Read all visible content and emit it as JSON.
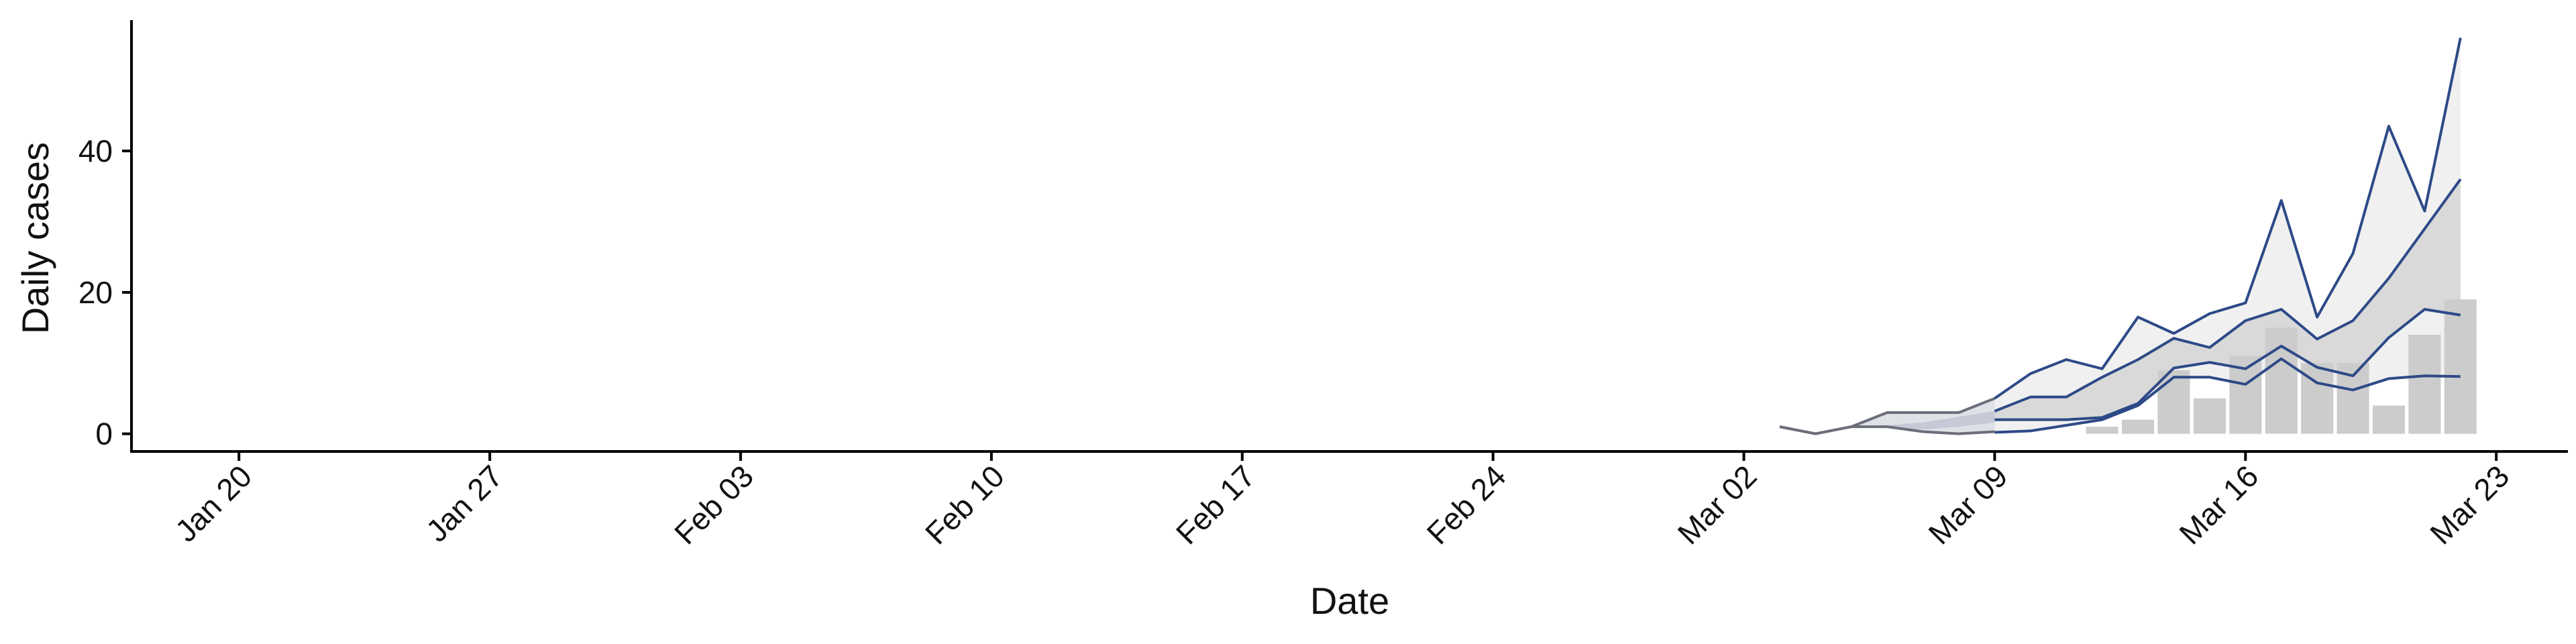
{
  "chart_data": {
    "type": "line",
    "title": "",
    "xlabel": "Date",
    "ylabel": "Daily cases",
    "x_range": [
      "2020-01-17",
      "2020-03-25"
    ],
    "ylim": [
      -2.5,
      58.5
    ],
    "grid": false,
    "x_ticks": [
      {
        "date": "2020-01-20",
        "label": "Jan 20"
      },
      {
        "date": "2020-01-27",
        "label": "Jan 27"
      },
      {
        "date": "2020-02-03",
        "label": "Feb 03"
      },
      {
        "date": "2020-02-10",
        "label": "Feb 10"
      },
      {
        "date": "2020-02-17",
        "label": "Feb 17"
      },
      {
        "date": "2020-02-24",
        "label": "Feb 24"
      },
      {
        "date": "2020-03-02",
        "label": "Mar 02"
      },
      {
        "date": "2020-03-09",
        "label": "Mar 09"
      },
      {
        "date": "2020-03-16",
        "label": "Mar 16"
      },
      {
        "date": "2020-03-23",
        "label": "Mar 23"
      }
    ],
    "y_ticks": [
      0,
      20,
      40
    ],
    "bars": {
      "color": "#cccccc",
      "x": [
        "2020-03-12",
        "2020-03-13",
        "2020-03-14",
        "2020-03-15",
        "2020-03-16",
        "2020-03-17",
        "2020-03-18",
        "2020-03-19",
        "2020-03-20",
        "2020-03-21",
        "2020-03-22"
      ],
      "values": [
        1,
        2,
        9,
        5,
        11,
        15,
        10,
        10,
        4,
        14,
        19
      ]
    },
    "past_series": {
      "x": [
        "2020-03-03",
        "2020-03-04",
        "2020-03-05",
        "2020-03-06",
        "2020-03-07",
        "2020-03-08",
        "2020-03-09"
      ],
      "outer_band": {
        "color": "#6b6e7a",
        "fill": "#d6d9e0",
        "upper": [
          1,
          0,
          1,
          3,
          3,
          3,
          5
        ],
        "lower": [
          1,
          0,
          1,
          1,
          0.3,
          0,
          0.3
        ]
      },
      "inner_band": {
        "fill": "#c5cad6",
        "upper": [
          1,
          0,
          1,
          1.2,
          1.6,
          2.4,
          3.2
        ],
        "lower": [
          1,
          0,
          1,
          0.8,
          0.6,
          1.0,
          1.6
        ]
      }
    },
    "forecast": {
      "line_color": "#2d4a87",
      "x": [
        "2020-03-09",
        "2020-03-10",
        "2020-03-11",
        "2020-03-12",
        "2020-03-13",
        "2020-03-14",
        "2020-03-15",
        "2020-03-16",
        "2020-03-17",
        "2020-03-18",
        "2020-03-19",
        "2020-03-20",
        "2020-03-21",
        "2020-03-22"
      ],
      "lines": [
        {
          "role": "upper-90",
          "values": [
            5,
            8.5,
            10.5,
            9.2,
            16.5,
            14.2,
            17,
            18.5,
            33,
            16.5,
            25.5,
            43.5,
            31.5,
            56
          ]
        },
        {
          "role": "upper-50",
          "values": [
            3.2,
            5.2,
            5.2,
            8,
            10.5,
            13.5,
            12.2,
            16,
            17.6,
            13.4,
            16,
            22,
            29,
            36
          ]
        },
        {
          "role": "lower-50",
          "values": [
            2,
            2,
            2,
            2.3,
            4.3,
            9.3,
            10.1,
            9.2,
            12.4,
            9.4,
            8.2,
            13.6,
            17.6,
            16.8
          ]
        },
        {
          "role": "lower-90",
          "values": [
            0.2,
            0.4,
            1.2,
            2,
            4,
            8,
            8,
            7,
            10.6,
            7.2,
            6.2,
            7.8,
            8.2,
            8.1
          ]
        }
      ],
      "outer_fill": "#f0f0f0",
      "inner_fill": "#d9d9d9"
    }
  }
}
